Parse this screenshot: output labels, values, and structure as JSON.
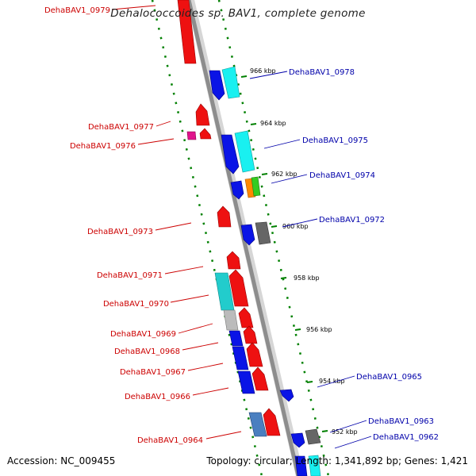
{
  "title": "Dehalococcoides sp. BAV1, complete genome",
  "footer": {
    "accession": "Accession: NC_009455",
    "topology": "Topology: circular; Length: 1,341,892 bp; Genes: 1,421"
  },
  "colors": {
    "minus_label": "#cc0000",
    "plus_label": "#0000aa",
    "tick": "#008000",
    "backbone": "#9a9a9a"
  },
  "scale_ticks": [
    "966 kbp",
    "964 kbp",
    "962 kbp",
    "960 kbp",
    "958 kbp",
    "956 kbp",
    "954 kbp",
    "952 kbp"
  ],
  "minus_genes": [
    "DehaBAV1_0979",
    "DehaBAV1_0977",
    "DehaBAV1_0976",
    "DehaBAV1_0973",
    "DehaBAV1_0971",
    "DehaBAV1_0970",
    "DehaBAV1_0969",
    "DehaBAV1_0968",
    "DehaBAV1_0967",
    "DehaBAV1_0966",
    "DehaBAV1_0964"
  ],
  "plus_genes": [
    "DehaBAV1_0978",
    "DehaBAV1_0975",
    "DehaBAV1_0974",
    "DehaBAV1_0972",
    "DehaBAV1_0965",
    "DehaBAV1_0963",
    "DehaBAV1_0962"
  ]
}
